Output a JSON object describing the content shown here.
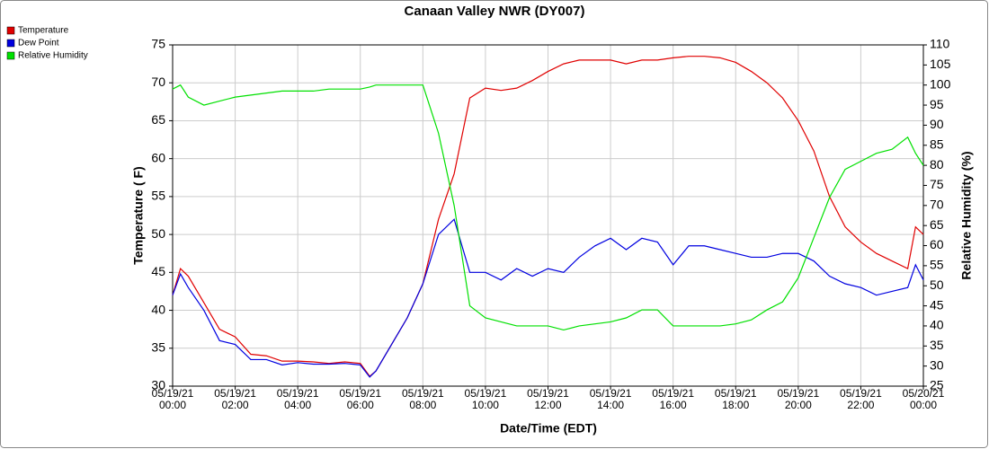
{
  "chart_data": {
    "type": "line",
    "title": "Canaan Valley NWR (DY007)",
    "xlabel": "Date/Time (EDT)",
    "ylabel": "Temperature ( F)",
    "y2label": "Relative Humidity (%)",
    "legend": "top-left",
    "grid": true,
    "xlim": [
      0,
      24
    ],
    "xticks": [
      {
        "value": 0,
        "label": "05/19/21\n00:00"
      },
      {
        "value": 2,
        "label": "05/19/21\n02:00"
      },
      {
        "value": 4,
        "label": "05/19/21\n04:00"
      },
      {
        "value": 6,
        "label": "05/19/21\n06:00"
      },
      {
        "value": 8,
        "label": "05/19/21\n08:00"
      },
      {
        "value": 10,
        "label": "05/19/21\n10:00"
      },
      {
        "value": 12,
        "label": "05/19/21\n12:00"
      },
      {
        "value": 14,
        "label": "05/19/21\n14:00"
      },
      {
        "value": 16,
        "label": "05/19/21\n16:00"
      },
      {
        "value": 18,
        "label": "05/19/21\n18:00"
      },
      {
        "value": 20,
        "label": "05/19/21\n20:00"
      },
      {
        "value": 22,
        "label": "05/19/21\n22:00"
      },
      {
        "value": 24,
        "label": "05/20/21\n00:00"
      }
    ],
    "ylim": [
      30,
      75
    ],
    "yticks": [
      30,
      35,
      40,
      45,
      50,
      55,
      60,
      65,
      70,
      75
    ],
    "y2lim": [
      25,
      110
    ],
    "y2ticks": [
      25,
      30,
      35,
      40,
      45,
      50,
      55,
      60,
      65,
      70,
      75,
      80,
      85,
      90,
      95,
      100,
      105,
      110
    ],
    "x": [
      0,
      0.25,
      0.5,
      1,
      1.5,
      2,
      2.5,
      3,
      3.5,
      4,
      4.5,
      5,
      5.5,
      6,
      6.3,
      6.5,
      7,
      7.5,
      8,
      8.5,
      9,
      9.5,
      10,
      10.5,
      11,
      11.5,
      12,
      12.5,
      13,
      13.5,
      14,
      14.5,
      15,
      15.5,
      16,
      16.5,
      17,
      17.5,
      18,
      18.5,
      19,
      19.5,
      20,
      20.5,
      21,
      21.5,
      22,
      22.5,
      23,
      23.5,
      23.75,
      24
    ],
    "series": [
      {
        "name": "Temperature",
        "color": "#e00000",
        "values": [
          42,
          45.5,
          44.5,
          41,
          37.5,
          36.5,
          34.2,
          34,
          33.3,
          33.3,
          33.2,
          33,
          33.2,
          33,
          31.3,
          32,
          35.5,
          39,
          43.5,
          52,
          58,
          68,
          69.3,
          69,
          69.3,
          70.3,
          71.5,
          72.5,
          73,
          73,
          73,
          72.5,
          73,
          73,
          73.3,
          73.5,
          73.5,
          73.3,
          72.7,
          71.5,
          70,
          68,
          65,
          61,
          55,
          51,
          49,
          47.5,
          46.5,
          45.5,
          51,
          50
        ]
      },
      {
        "name": "Dew Point",
        "color": "#0000e0",
        "values": [
          42,
          44.8,
          43,
          40,
          36,
          35.5,
          33.5,
          33.5,
          32.8,
          33.1,
          32.9,
          32.9,
          33,
          32.8,
          31.2,
          32,
          35.5,
          39,
          43.5,
          50,
          52,
          45,
          45,
          44,
          45.5,
          44.5,
          45.5,
          45,
          47,
          48.5,
          49.5,
          48,
          49.5,
          49,
          46,
          48.5,
          48.5,
          48,
          47.5,
          47,
          47,
          47.5,
          47.5,
          46.5,
          44.5,
          43.5,
          43,
          42,
          42.5,
          43,
          46,
          44
        ]
      },
      {
        "name": "Relative Humidity",
        "color": "#00e000",
        "axis": "y2",
        "values": [
          99,
          100,
          97,
          95,
          96,
          97,
          97.5,
          98,
          98.5,
          98.5,
          98.5,
          99,
          99,
          99,
          99.5,
          100,
          100,
          100,
          100,
          88,
          70,
          45,
          42,
          41,
          40,
          40,
          40,
          39,
          40,
          40.5,
          41,
          42,
          44,
          44,
          40,
          40,
          40,
          40,
          40.5,
          41.5,
          44,
          46,
          52,
          62,
          72,
          79,
          81,
          83,
          84,
          87,
          83,
          80
        ]
      }
    ]
  }
}
